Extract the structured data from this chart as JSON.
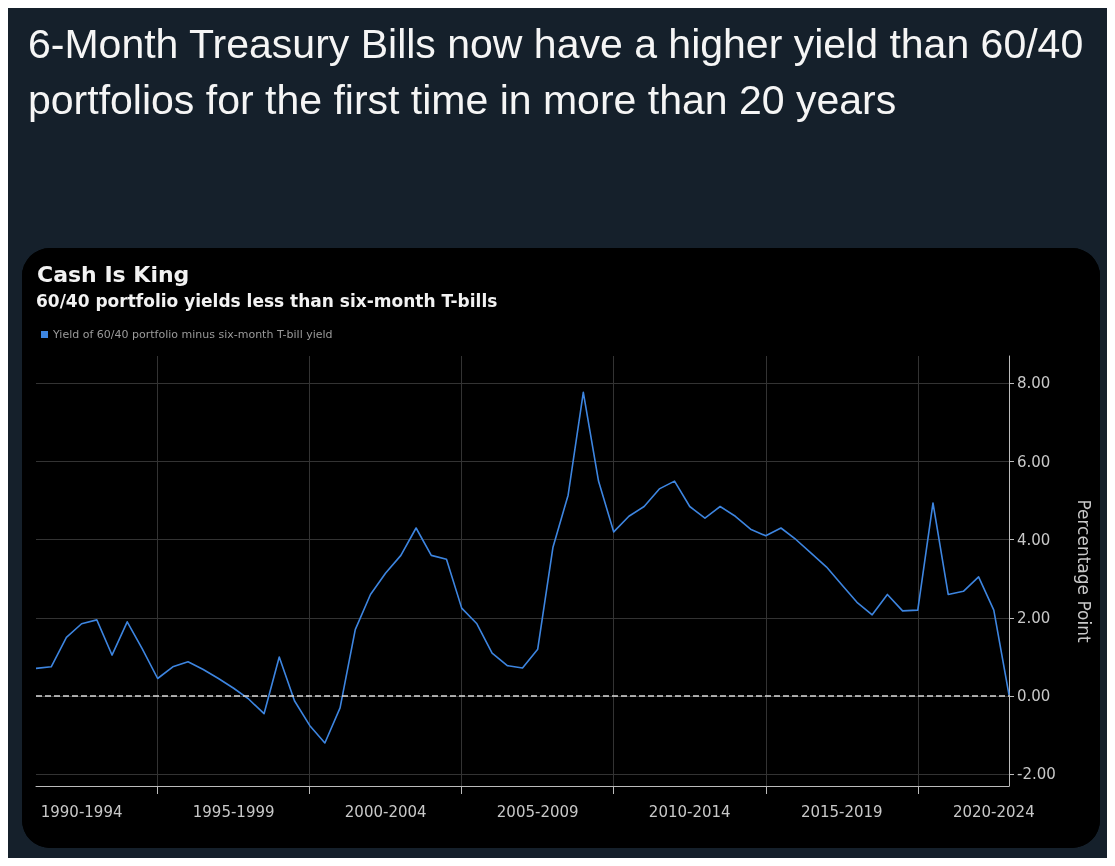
{
  "chart_data": {
    "type": "line",
    "title": "6-Month Treasury Bills now have a higher yield than 60/40 portfolios for the first time in more than 20 years",
    "subtitle": "Cash Is King",
    "annotations": [
      "60/40 portfolio yields less than six-month T-bills"
    ],
    "ylabel": "Percentage Point",
    "categories": [
      null,
      null,
      null,
      "1990-1994",
      null,
      null,
      null,
      null,
      null,
      null,
      null,
      null,
      null,
      "1995-1999",
      null,
      null,
      null,
      null,
      null,
      null,
      null,
      null,
      null,
      "2000-2004",
      null,
      null,
      null,
      null,
      null,
      null,
      null,
      null,
      null,
      "2005-2009",
      null,
      null,
      null,
      null,
      null,
      null,
      null,
      null,
      null,
      "2010-2014",
      null,
      null,
      null,
      null,
      null,
      null,
      null,
      null,
      null,
      "2015-2019",
      null,
      null,
      null,
      null,
      null,
      null,
      null,
      null,
      null,
      "2020-2024",
      null
    ],
    "series": [
      {
        "name": "Yield of 60/40 portfolio minus six-month T-bill yield",
        "color": "#3d85e0",
        "values": [
          0.71,
          0.75,
          1.5,
          1.85,
          1.95,
          1.05,
          1.9,
          1.2,
          0.45,
          0.75,
          0.88,
          0.68,
          0.45,
          0.2,
          -0.08,
          -0.45,
          1.0,
          -0.12,
          -0.75,
          -1.2,
          -0.3,
          1.7,
          2.6,
          3.15,
          3.6,
          4.3,
          3.6,
          3.5,
          2.25,
          1.85,
          1.1,
          0.78,
          0.72,
          1.2,
          3.8,
          5.14,
          7.77,
          5.5,
          4.2,
          4.6,
          4.85,
          5.3,
          5.5,
          4.85,
          4.55,
          4.85,
          4.6,
          4.27,
          4.1,
          4.3,
          4.0,
          3.65,
          3.3,
          2.85,
          2.4,
          2.08,
          2.6,
          2.18,
          2.2,
          4.94,
          2.6,
          2.68,
          3.05,
          2.2,
          0.03
        ]
      }
    ],
    "ylim": [
      -2.3,
      8.7
    ],
    "yticks": [
      {
        "value": -2,
        "label": "-2.00"
      },
      {
        "value": 0,
        "label": "0.00"
      },
      {
        "value": 2,
        "label": "2.00"
      },
      {
        "value": 4,
        "label": "4.00"
      },
      {
        "value": 6,
        "label": "6.00"
      },
      {
        "value": 8,
        "label": "8.00"
      }
    ],
    "ref_lines": [
      {
        "axis": "y",
        "value": 0,
        "color": "#d9d9d9",
        "line_style": "dashed"
      }
    ],
    "grid": true,
    "legend": "top left"
  }
}
